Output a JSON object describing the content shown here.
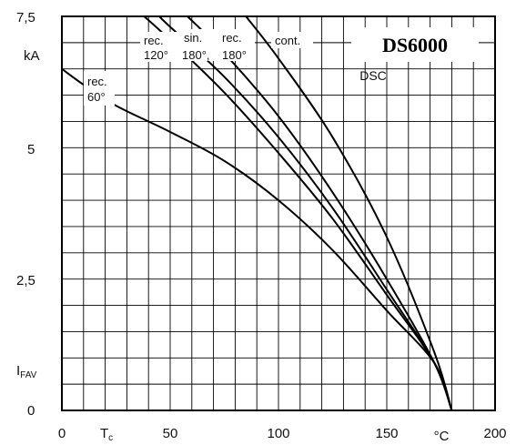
{
  "chart_data": {
    "type": "line",
    "title": "DS6000",
    "annotation": "DSC",
    "xlim": [
      0,
      200
    ],
    "ylim": [
      0,
      7.5
    ],
    "x_tick_labels": [
      {
        "value": 0,
        "label": "0"
      },
      {
        "value": 50,
        "label": "50"
      },
      {
        "value": 100,
        "label": "100"
      },
      {
        "value": 150,
        "label": "150"
      },
      {
        "value": 200,
        "label": "200"
      }
    ],
    "y_tick_labels": [
      {
        "value": 0,
        "label": "0"
      },
      {
        "value": 2.5,
        "label": "2,5"
      },
      {
        "value": 5,
        "label": "5"
      },
      {
        "value": 7.5,
        "label": "7,5"
      }
    ],
    "xlabel": {
      "main": "T",
      "sub": "c"
    },
    "xunit": "°C",
    "ylabel": {
      "main": "I",
      "sub": "FAV"
    },
    "yunit": "kA",
    "grid": true,
    "series": [
      {
        "name": "rec. 60°",
        "label_lines": [
          "rec.",
          "60°"
        ],
        "points": [
          [
            0,
            6.5
          ],
          [
            10,
            6.2
          ],
          [
            25,
            5.8
          ],
          [
            50,
            5.3
          ],
          [
            75,
            4.75
          ],
          [
            100,
            4.0
          ],
          [
            125,
            3.05
          ],
          [
            150,
            1.9
          ],
          [
            172,
            0.9
          ],
          [
            180,
            0
          ]
        ]
      },
      {
        "name": "rec. 120°",
        "label_lines": [
          "rec.",
          "120°"
        ],
        "points": [
          [
            38,
            7.5
          ],
          [
            50,
            7.05
          ],
          [
            75,
            6.05
          ],
          [
            100,
            4.9
          ],
          [
            125,
            3.65
          ],
          [
            150,
            2.2
          ],
          [
            172,
            0.9
          ],
          [
            180,
            0
          ]
        ]
      },
      {
        "name": "sin. 180°",
        "label_lines": [
          "sin.",
          "180°,"
        ],
        "points": [
          [
            45,
            7.5
          ],
          [
            50,
            7.3
          ],
          [
            75,
            6.35
          ],
          [
            100,
            5.2
          ],
          [
            125,
            3.85
          ],
          [
            150,
            2.3
          ],
          [
            172,
            0.9
          ],
          [
            180,
            0
          ]
        ]
      },
      {
        "name": "rec. 180°",
        "label_lines": [
          "rec.",
          "180°"
        ],
        "points": [
          [
            58,
            7.5
          ],
          [
            75,
            6.8
          ],
          [
            100,
            5.6
          ],
          [
            125,
            4.15
          ],
          [
            150,
            2.5
          ],
          [
            172,
            0.9
          ],
          [
            180,
            0
          ]
        ]
      },
      {
        "name": "cont.",
        "label_lines": [
          "cont."
        ],
        "points": [
          [
            85,
            7.5
          ],
          [
            100,
            6.7
          ],
          [
            125,
            5.2
          ],
          [
            150,
            3.3
          ],
          [
            172,
            1.1
          ],
          [
            180,
            0
          ]
        ]
      }
    ]
  }
}
